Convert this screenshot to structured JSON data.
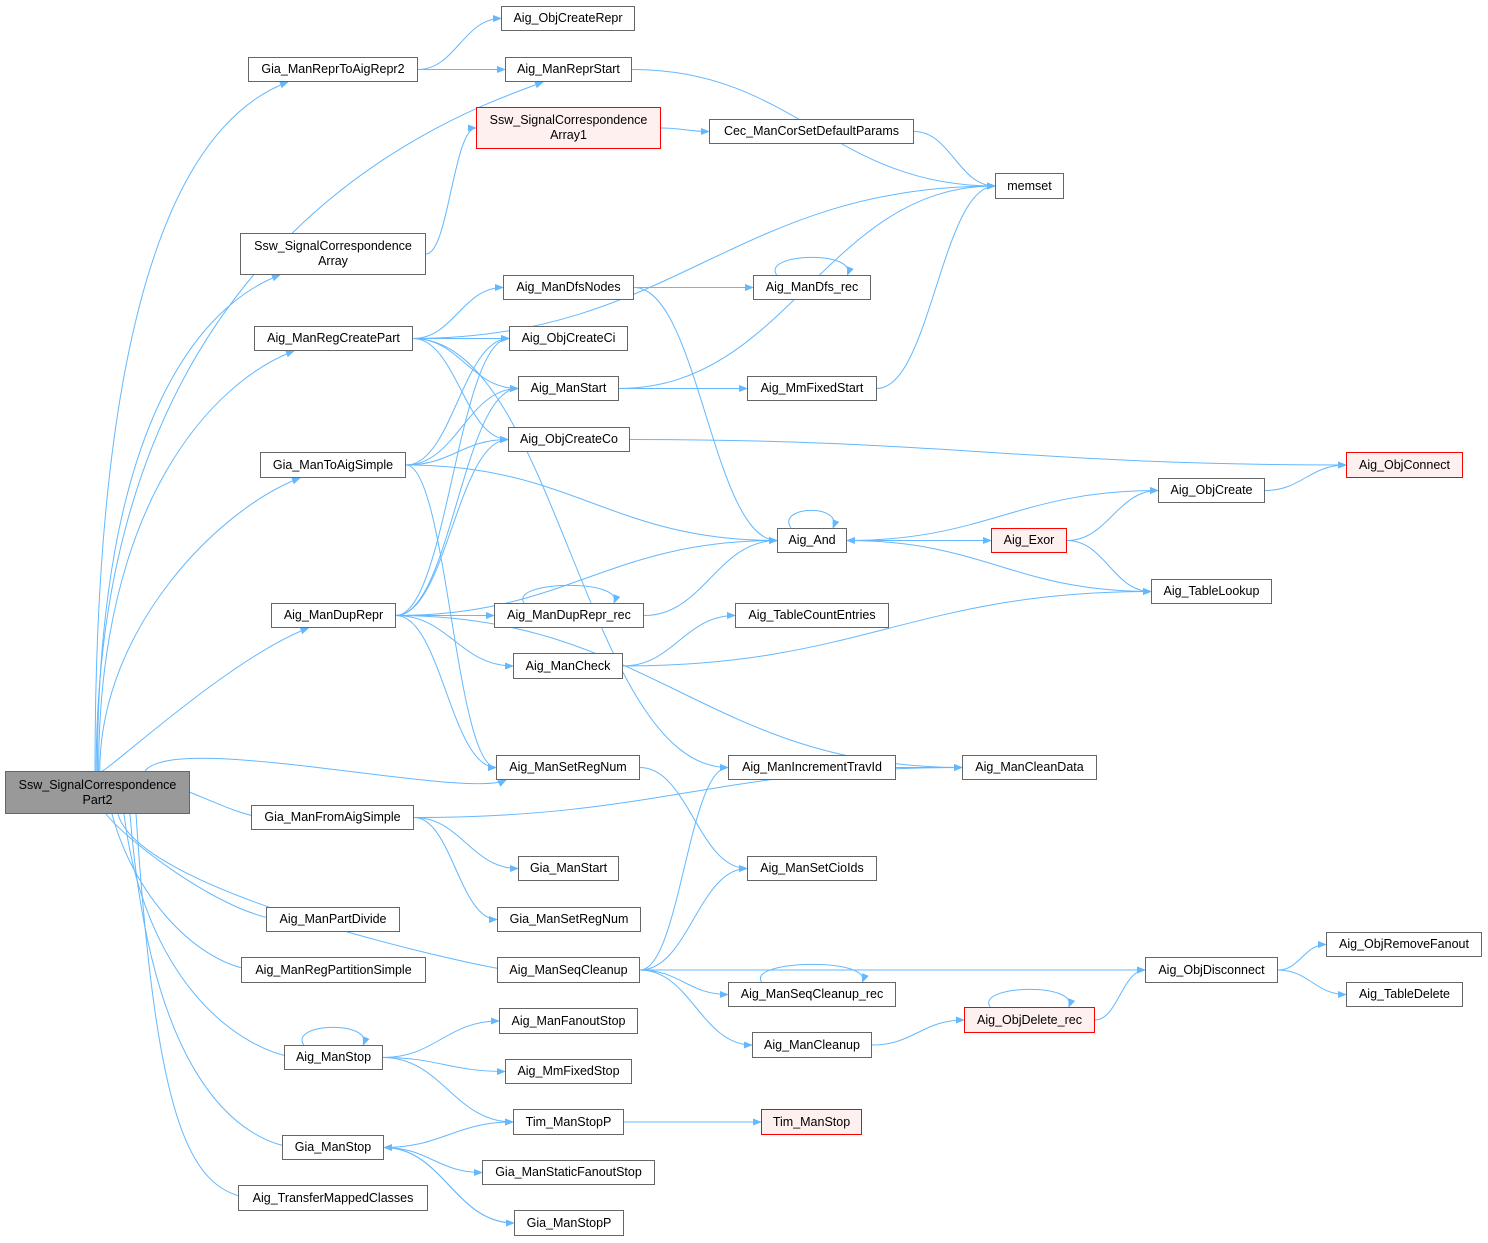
{
  "colors": {
    "edge": "#63b8ff",
    "node_border": "#666666",
    "root_fill": "#999999",
    "red_border": "#ff0000",
    "red_fill": "#fff0f0"
  },
  "nodes": [
    {
      "id": "root",
      "lines": [
        "Ssw_SignalCorrespondence",
        "Part2"
      ],
      "style": "root"
    },
    {
      "id": "GiaReprToAigRepr2",
      "lines": [
        "Gia_ManReprToAigRepr2"
      ],
      "style": "normal"
    },
    {
      "id": "ObjCreateRepr",
      "lines": [
        "Aig_ObjCreateRepr"
      ],
      "style": "normal"
    },
    {
      "id": "ManReprStart",
      "lines": [
        "Aig_ManReprStart"
      ],
      "style": "normal"
    },
    {
      "id": "SswArray1",
      "lines": [
        "Ssw_SignalCorrespondence",
        "Array1"
      ],
      "style": "red"
    },
    {
      "id": "CecDefault",
      "lines": [
        "Cec_ManCorSetDefaultParams"
      ],
      "style": "normal"
    },
    {
      "id": "memset",
      "lines": [
        "memset"
      ],
      "style": "normal"
    },
    {
      "id": "SswArray",
      "lines": [
        "Ssw_SignalCorrespondence",
        "Array"
      ],
      "style": "normal"
    },
    {
      "id": "DfsNodes",
      "lines": [
        "Aig_ManDfsNodes"
      ],
      "style": "normal"
    },
    {
      "id": "Dfsrec",
      "lines": [
        "Aig_ManDfs_rec"
      ],
      "style": "normal"
    },
    {
      "id": "RegCreatePart",
      "lines": [
        "Aig_ManRegCreatePart"
      ],
      "style": "normal"
    },
    {
      "id": "ObjCreateCi",
      "lines": [
        "Aig_ObjCreateCi"
      ],
      "style": "normal"
    },
    {
      "id": "ManStart",
      "lines": [
        "Aig_ManStart"
      ],
      "style": "normal"
    },
    {
      "id": "MmFixedStart",
      "lines": [
        "Aig_MmFixedStart"
      ],
      "style": "normal"
    },
    {
      "id": "ObjCreateCo",
      "lines": [
        "Aig_ObjCreateCo"
      ],
      "style": "normal"
    },
    {
      "id": "ObjConnect",
      "lines": [
        "Aig_ObjConnect"
      ],
      "style": "red"
    },
    {
      "id": "GiaToAigSimple",
      "lines": [
        "Gia_ManToAigSimple"
      ],
      "style": "normal"
    },
    {
      "id": "ObjCreate",
      "lines": [
        "Aig_ObjCreate"
      ],
      "style": "normal"
    },
    {
      "id": "And",
      "lines": [
        "Aig_And"
      ],
      "style": "normal"
    },
    {
      "id": "Exor",
      "lines": [
        "Aig_Exor"
      ],
      "style": "red"
    },
    {
      "id": "TableLookup",
      "lines": [
        "Aig_TableLookup"
      ],
      "style": "normal"
    },
    {
      "id": "DupRepr",
      "lines": [
        "Aig_ManDupRepr"
      ],
      "style": "normal"
    },
    {
      "id": "DupReprrec",
      "lines": [
        "Aig_ManDupRepr_rec"
      ],
      "style": "normal"
    },
    {
      "id": "TableCount",
      "lines": [
        "Aig_TableCountEntries"
      ],
      "style": "normal"
    },
    {
      "id": "ManCheck",
      "lines": [
        "Aig_ManCheck"
      ],
      "style": "normal"
    },
    {
      "id": "SetRegNum",
      "lines": [
        "Aig_ManSetRegNum"
      ],
      "style": "normal"
    },
    {
      "id": "IncTravId",
      "lines": [
        "Aig_ManIncrementTravId"
      ],
      "style": "normal"
    },
    {
      "id": "CleanData",
      "lines": [
        "Aig_ManCleanData"
      ],
      "style": "normal"
    },
    {
      "id": "GiaFromAigSimple",
      "lines": [
        "Gia_ManFromAigSimple"
      ],
      "style": "normal"
    },
    {
      "id": "GiaStart",
      "lines": [
        "Gia_ManStart"
      ],
      "style": "normal"
    },
    {
      "id": "SetCioIds",
      "lines": [
        "Aig_ManSetCioIds"
      ],
      "style": "normal"
    },
    {
      "id": "PartDivide",
      "lines": [
        "Aig_ManPartDivide"
      ],
      "style": "normal"
    },
    {
      "id": "GiaSetRegNum",
      "lines": [
        "Gia_ManSetRegNum"
      ],
      "style": "normal"
    },
    {
      "id": "RegPartSimple",
      "lines": [
        "Aig_ManRegPartitionSimple"
      ],
      "style": "normal"
    },
    {
      "id": "SeqCleanup",
      "lines": [
        "Aig_ManSeqCleanup"
      ],
      "style": "normal"
    },
    {
      "id": "ObjDisconnect",
      "lines": [
        "Aig_ObjDisconnect"
      ],
      "style": "normal"
    },
    {
      "id": "ObjRemoveFanout",
      "lines": [
        "Aig_ObjRemoveFanout"
      ],
      "style": "normal"
    },
    {
      "id": "SeqCleanuprec",
      "lines": [
        "Aig_ManSeqCleanup_rec"
      ],
      "style": "normal"
    },
    {
      "id": "TableDelete",
      "lines": [
        "Aig_TableDelete"
      ],
      "style": "normal"
    },
    {
      "id": "ObjDeleterec",
      "lines": [
        "Aig_ObjDelete_rec"
      ],
      "style": "red"
    },
    {
      "id": "FanoutStop",
      "lines": [
        "Aig_ManFanoutStop"
      ],
      "style": "normal"
    },
    {
      "id": "ManStop",
      "lines": [
        "Aig_ManStop"
      ],
      "style": "normal"
    },
    {
      "id": "ManCleanup",
      "lines": [
        "Aig_ManCleanup"
      ],
      "style": "normal"
    },
    {
      "id": "MmFixedStop",
      "lines": [
        "Aig_MmFixedStop"
      ],
      "style": "normal"
    },
    {
      "id": "TimStopP",
      "lines": [
        "Tim_ManStopP"
      ],
      "style": "normal"
    },
    {
      "id": "TimStop",
      "lines": [
        "Tim_ManStop"
      ],
      "style": "red"
    },
    {
      "id": "GiaStop",
      "lines": [
        "Gia_ManStop"
      ],
      "style": "normal"
    },
    {
      "id": "GiaStaticFanoutStop",
      "lines": [
        "Gia_ManStaticFanoutStop"
      ],
      "style": "normal"
    },
    {
      "id": "TransferMapped",
      "lines": [
        "Aig_TransferMappedClasses"
      ],
      "style": "normal"
    },
    {
      "id": "GiaStopP",
      "lines": [
        "Gia_ManStopP"
      ],
      "style": "normal"
    }
  ],
  "edges": [
    [
      "root",
      "GiaReprToAigRepr2"
    ],
    [
      "root",
      "ManReprStart"
    ],
    [
      "root",
      "SswArray"
    ],
    [
      "root",
      "RegCreatePart"
    ],
    [
      "root",
      "GiaToAigSimple"
    ],
    [
      "root",
      "DupRepr"
    ],
    [
      "root",
      "SetRegNum"
    ],
    [
      "root",
      "GiaFromAigSimple"
    ],
    [
      "root",
      "PartDivide"
    ],
    [
      "root",
      "RegPartSimple"
    ],
    [
      "root",
      "SeqCleanup"
    ],
    [
      "root",
      "ManStop"
    ],
    [
      "root",
      "GiaStop"
    ],
    [
      "root",
      "TransferMapped"
    ],
    [
      "GiaReprToAigRepr2",
      "ObjCreateRepr"
    ],
    [
      "GiaReprToAigRepr2",
      "ManReprStart"
    ],
    [
      "ManReprStart",
      "memset"
    ],
    [
      "SswArray",
      "SswArray1"
    ],
    [
      "SswArray1",
      "CecDefault"
    ],
    [
      "CecDefault",
      "memset"
    ],
    [
      "RegCreatePart",
      "memset"
    ],
    [
      "RegCreatePart",
      "DfsNodes"
    ],
    [
      "RegCreatePart",
      "ObjCreateCi"
    ],
    [
      "RegCreatePart",
      "ManStart"
    ],
    [
      "RegCreatePart",
      "ObjCreateCo"
    ],
    [
      "RegCreatePart",
      "IncTravId"
    ],
    [
      "DfsNodes",
      "Dfsrec"
    ],
    [
      "DfsNodes",
      "And"
    ],
    [
      "Dfsrec",
      "Dfsrec"
    ],
    [
      "ManStart",
      "memset"
    ],
    [
      "ManStart",
      "MmFixedStart"
    ],
    [
      "MmFixedStart",
      "memset"
    ],
    [
      "ObjCreateCo",
      "ObjConnect"
    ],
    [
      "GiaToAigSimple",
      "ObjCreateCi"
    ],
    [
      "GiaToAigSimple",
      "ManStart"
    ],
    [
      "GiaToAigSimple",
      "ObjCreateCo"
    ],
    [
      "GiaToAigSimple",
      "And"
    ],
    [
      "GiaToAigSimple",
      "SetRegNum"
    ],
    [
      "And",
      "And"
    ],
    [
      "And",
      "ObjCreate"
    ],
    [
      "And",
      "Exor"
    ],
    [
      "And",
      "TableLookup"
    ],
    [
      "Exor",
      "And"
    ],
    [
      "Exor",
      "ObjCreate"
    ],
    [
      "Exor",
      "TableLookup"
    ],
    [
      "ObjCreate",
      "ObjConnect"
    ],
    [
      "DupRepr",
      "ObjCreateCi"
    ],
    [
      "DupRepr",
      "ManStart"
    ],
    [
      "DupRepr",
      "ObjCreateCo"
    ],
    [
      "DupRepr",
      "And"
    ],
    [
      "DupRepr",
      "DupReprrec"
    ],
    [
      "DupRepr",
      "ManCheck"
    ],
    [
      "DupRepr",
      "SetRegNum"
    ],
    [
      "DupRepr",
      "CleanData"
    ],
    [
      "DupReprrec",
      "DupReprrec"
    ],
    [
      "DupReprrec",
      "And"
    ],
    [
      "ManCheck",
      "TableCount"
    ],
    [
      "ManCheck",
      "TableLookup"
    ],
    [
      "SetRegNum",
      "SetCioIds"
    ],
    [
      "IncTravId",
      "CleanData"
    ],
    [
      "GiaFromAigSimple",
      "CleanData"
    ],
    [
      "GiaFromAigSimple",
      "GiaStart"
    ],
    [
      "GiaFromAigSimple",
      "GiaSetRegNum"
    ],
    [
      "SeqCleanup",
      "IncTravId"
    ],
    [
      "SeqCleanup",
      "SetCioIds"
    ],
    [
      "SeqCleanup",
      "ObjDisconnect"
    ],
    [
      "SeqCleanup",
      "SeqCleanuprec"
    ],
    [
      "SeqCleanup",
      "ManCleanup"
    ],
    [
      "SeqCleanuprec",
      "SeqCleanuprec"
    ],
    [
      "ManCleanup",
      "ObjDeleterec"
    ],
    [
      "ObjDeleterec",
      "ObjDeleterec"
    ],
    [
      "ObjDeleterec",
      "ObjDisconnect"
    ],
    [
      "ObjDisconnect",
      "ObjRemoveFanout"
    ],
    [
      "ObjDisconnect",
      "TableDelete"
    ],
    [
      "ManStop",
      "ManStop"
    ],
    [
      "ManStop",
      "FanoutStop"
    ],
    [
      "ManStop",
      "MmFixedStop"
    ],
    [
      "ManStop",
      "TimStopP"
    ],
    [
      "TimStopP",
      "TimStop"
    ],
    [
      "GiaStop",
      "TimStopP"
    ],
    [
      "GiaStop",
      "GiaStaticFanoutStop"
    ],
    [
      "GiaStop",
      "GiaStopP"
    ],
    [
      "GiaStopP",
      "GiaStop"
    ]
  ]
}
